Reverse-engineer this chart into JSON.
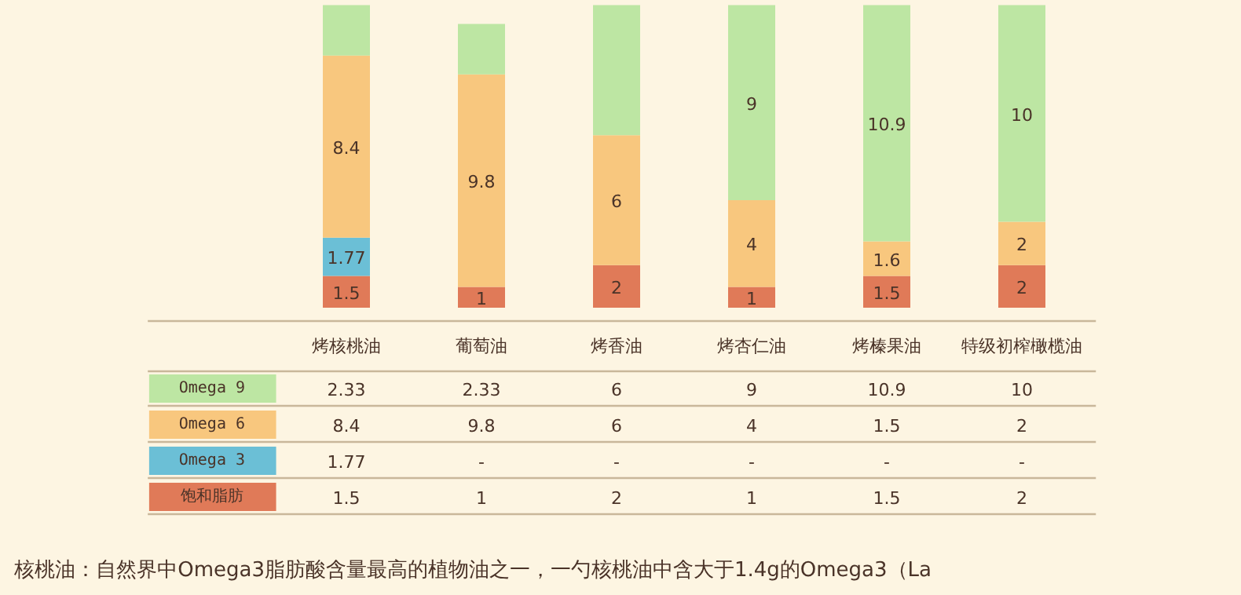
{
  "chart_data": [
    {
      "type": "bar",
      "stacked": true,
      "legend": "bottom",
      "categories": [
        null,
        null,
        null,
        null,
        null,
        null
      ],
      "ylim": [
        0,
        14.2
      ],
      "tick_labels": false,
      "series": [
        {
          "name": "饱和脂肪",
          "color": "#e07a58",
          "values": [
            1.5,
            1,
            2,
            1,
            1.5,
            2
          ],
          "value_labels": [
            "1.5",
            "1",
            "2",
            "1",
            "1.5",
            "2"
          ]
        },
        {
          "name": "Omega 3",
          "color": "#6bbfd6",
          "values": [
            1.77,
            null,
            null,
            null,
            null,
            null
          ],
          "value_labels": [
            "1.77",
            null,
            null,
            null,
            null,
            null
          ]
        },
        {
          "name": "Omega 6",
          "color": "#f8c77e",
          "values": [
            8.4,
            9.8,
            6,
            4,
            1.6,
            2
          ],
          "value_labels": [
            "8.4",
            "9.8",
            "6",
            "4",
            "1.6",
            "2"
          ]
        },
        {
          "name": "Omega 9",
          "color": "#bde6a3",
          "values": [
            2.33,
            2.33,
            6,
            9,
            10.9,
            10
          ],
          "value_labels": [
            null,
            null,
            null,
            "9",
            "10.9",
            "10"
          ]
        }
      ]
    },
    {
      "type": "other",
      "data_labels": true,
      "categories": [
        "烤核桃油",
        "葡萄油",
        "烤香油",
        "烤杏仁油",
        "烤榛果油",
        "特级初榨橄榄油"
      ],
      "series": [
        {
          "values": [
            2.33,
            2.33,
            6,
            9,
            10.9,
            10
          ]
        },
        {
          "values": [
            8.4,
            9.8,
            6,
            4,
            1.5,
            2
          ]
        },
        {
          "values": [
            1.77,
            null,
            null,
            null,
            null,
            null
          ],
          "value_labels": [
            "1.77",
            "-",
            "-",
            "-",
            "-",
            "-"
          ]
        },
        {
          "values": [
            1.5,
            1,
            2,
            1,
            1.5,
            2
          ]
        }
      ],
      "annotations": [
        "核桃油：自然界中Omega3脂肪酸含量最高的植物油之一，一勺核桃油中含大于1.4g的Omega3（La"
      ]
    }
  ]
}
